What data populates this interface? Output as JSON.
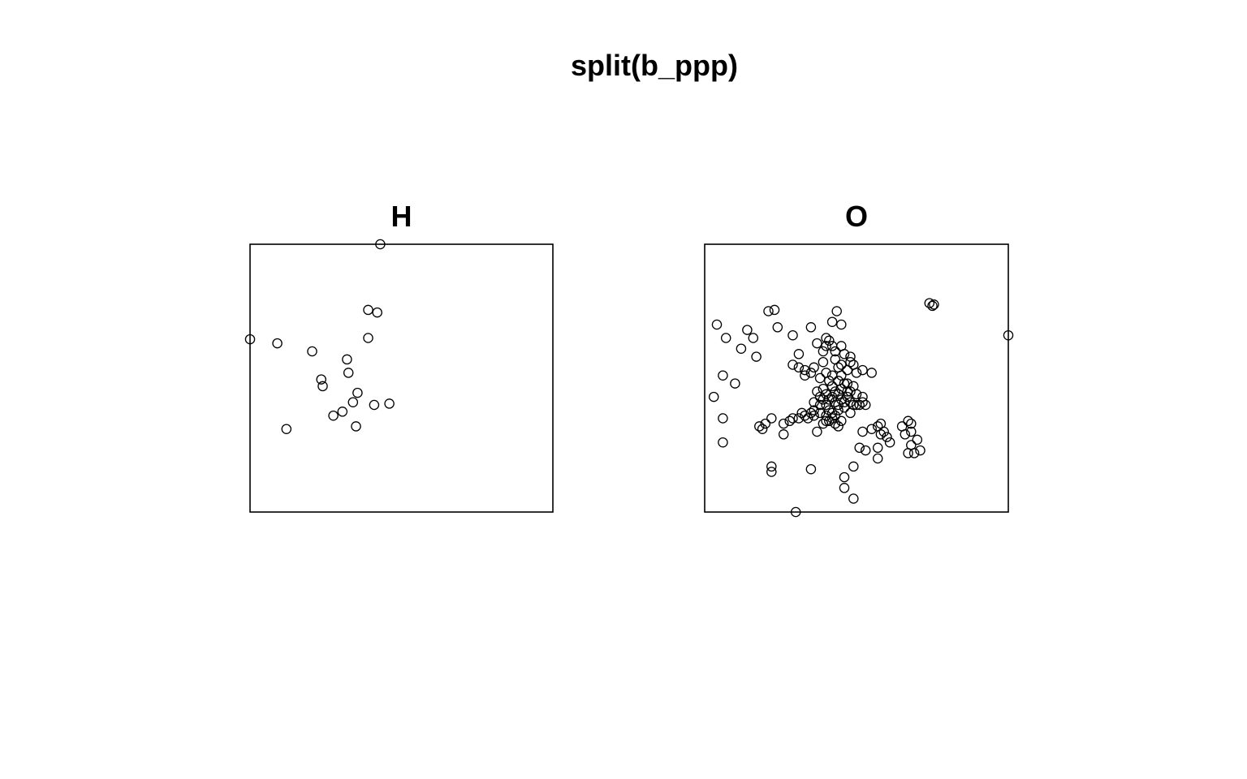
{
  "chart_data": {
    "type": "scatter",
    "title": "split(b_ppp)",
    "grid": false,
    "legend": "none",
    "point_color": "#000000",
    "window": {
      "xlim": [
        0,
        100
      ],
      "ylim": [
        0,
        100
      ]
    },
    "panels": [
      {
        "title": "H",
        "points": [
          [
            43,
            100
          ],
          [
            0,
            64.5
          ],
          [
            9,
            63
          ],
          [
            20.5,
            60
          ],
          [
            32,
            57
          ],
          [
            32.5,
            52
          ],
          [
            23.5,
            49.5
          ],
          [
            24,
            47
          ],
          [
            35.5,
            44.5
          ],
          [
            34,
            41
          ],
          [
            41,
            40
          ],
          [
            46,
            40.5
          ],
          [
            12,
            31
          ],
          [
            27.5,
            36
          ],
          [
            30.5,
            37.5
          ],
          [
            35,
            32
          ],
          [
            39,
            75.5
          ],
          [
            42,
            74.5
          ],
          [
            39,
            65
          ]
        ]
      },
      {
        "title": "O",
        "points": [
          [
            74,
            78
          ],
          [
            75,
            77
          ],
          [
            75.5,
            77.5
          ],
          [
            100,
            66
          ],
          [
            4,
            70
          ],
          [
            7,
            65
          ],
          [
            12,
            61
          ],
          [
            14,
            68
          ],
          [
            16,
            65
          ],
          [
            17,
            58
          ],
          [
            21,
            75
          ],
          [
            23,
            75.5
          ],
          [
            24,
            69
          ],
          [
            29,
            66
          ],
          [
            35,
            69
          ],
          [
            43.5,
            75
          ],
          [
            42,
            71
          ],
          [
            45,
            70
          ],
          [
            6,
            51
          ],
          [
            10,
            48
          ],
          [
            3,
            43
          ],
          [
            6,
            35
          ],
          [
            6,
            26
          ],
          [
            18,
            32
          ],
          [
            19,
            31
          ],
          [
            20,
            33
          ],
          [
            22,
            35
          ],
          [
            26,
            33
          ],
          [
            28,
            34
          ],
          [
            29,
            35
          ],
          [
            31,
            54
          ],
          [
            29,
            55
          ],
          [
            31,
            59
          ],
          [
            33,
            51
          ],
          [
            33,
            53
          ],
          [
            35,
            52
          ],
          [
            36,
            54
          ],
          [
            37,
            63
          ],
          [
            39,
            60
          ],
          [
            41,
            64
          ],
          [
            40,
            65
          ],
          [
            42,
            62
          ],
          [
            43,
            57
          ],
          [
            45,
            55
          ],
          [
            48,
            56
          ],
          [
            50,
            52
          ],
          [
            52,
            53
          ],
          [
            55,
            52
          ],
          [
            46,
            48
          ],
          [
            48,
            45
          ],
          [
            50,
            44
          ],
          [
            52,
            43
          ],
          [
            42,
            47
          ],
          [
            44,
            49
          ],
          [
            45,
            46
          ],
          [
            47,
            48
          ],
          [
            49,
            47
          ],
          [
            40,
            44
          ],
          [
            41,
            42
          ],
          [
            43,
            45
          ],
          [
            38,
            40
          ],
          [
            36,
            38
          ],
          [
            35,
            37
          ],
          [
            33,
            36
          ],
          [
            31,
            35
          ],
          [
            38,
            37
          ],
          [
            40,
            36
          ],
          [
            42,
            35
          ],
          [
            44,
            38
          ],
          [
            46,
            39
          ],
          [
            48,
            37
          ],
          [
            49,
            40
          ],
          [
            51,
            40
          ],
          [
            52,
            41
          ],
          [
            53,
            40
          ],
          [
            45,
            34
          ],
          [
            43,
            33
          ],
          [
            41,
            34
          ],
          [
            44,
            32
          ],
          [
            37,
            30
          ],
          [
            26,
            29
          ],
          [
            52,
            30
          ],
          [
            55,
            31
          ],
          [
            57,
            32
          ],
          [
            58,
            33
          ],
          [
            59,
            30
          ],
          [
            60,
            28
          ],
          [
            57,
            24
          ],
          [
            58,
            29
          ],
          [
            61,
            26
          ],
          [
            65,
            32
          ],
          [
            66,
            29
          ],
          [
            67,
            34
          ],
          [
            68,
            33
          ],
          [
            68,
            30
          ],
          [
            70,
            27
          ],
          [
            68,
            25
          ],
          [
            69,
            22
          ],
          [
            67,
            22
          ],
          [
            71,
            23
          ],
          [
            51,
            24
          ],
          [
            53,
            23
          ],
          [
            57,
            20
          ],
          [
            49,
            17
          ],
          [
            46,
            13
          ],
          [
            46,
            9
          ],
          [
            49,
            5
          ],
          [
            30,
            0
          ],
          [
            35,
            16
          ],
          [
            22,
            17
          ],
          [
            22,
            15
          ],
          [
            40,
            40
          ],
          [
            39,
            42
          ],
          [
            41,
            38
          ],
          [
            43,
            41
          ],
          [
            45,
            42
          ],
          [
            47,
            43
          ],
          [
            44,
            44
          ],
          [
            42,
            43
          ],
          [
            39,
            46
          ],
          [
            37,
            45
          ],
          [
            36,
            41
          ],
          [
            38,
            43
          ],
          [
            46,
            41
          ],
          [
            48,
            41
          ],
          [
            50,
            40
          ],
          [
            47,
            45
          ],
          [
            44,
            40
          ],
          [
            42,
            37
          ],
          [
            40,
            34
          ],
          [
            39,
            33
          ],
          [
            36,
            36
          ],
          [
            34,
            35
          ],
          [
            32,
            37
          ],
          [
            43,
            36
          ],
          [
            41,
            49
          ],
          [
            45,
            51
          ],
          [
            47,
            53
          ],
          [
            44,
            54
          ],
          [
            42,
            51
          ],
          [
            40,
            52
          ],
          [
            38,
            50
          ],
          [
            39,
            56
          ],
          [
            43,
            60
          ],
          [
            46,
            59
          ],
          [
            48,
            58
          ],
          [
            49,
            55
          ],
          [
            45,
            62
          ],
          [
            40,
            62
          ]
        ]
      }
    ]
  }
}
